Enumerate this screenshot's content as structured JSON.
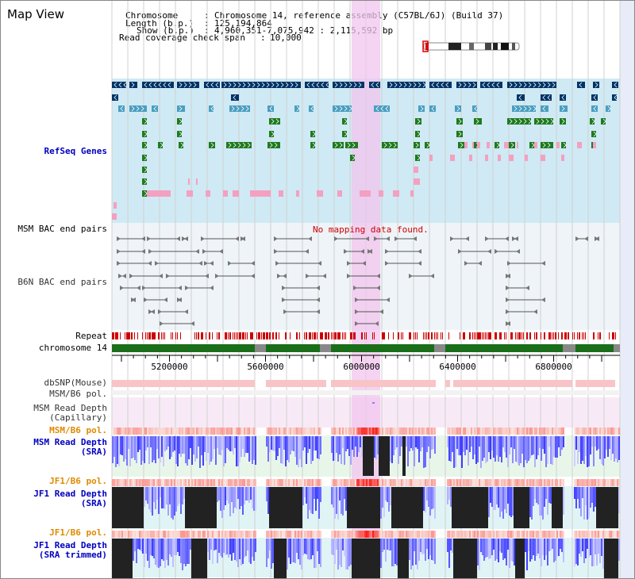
{
  "view_title": "Map View",
  "info": {
    "chromosome_label": "Chromosome",
    "chromosome_value": "Chromosome 14, reference assembly (C57BL/6J) (Build 37)",
    "length_label": "Length (b.p.)",
    "length_value": "125,194,864",
    "show_label": "Show (b.p.)",
    "show_value": "4,960,351-7,075,942 : 2,115,592 bp",
    "coverage_label": "Read coverage check span",
    "coverage_value": "10,000"
  },
  "tracks": {
    "refseq": "RefSeq Genes",
    "msm_bac": "MSM BAC end pairs",
    "b6n_bac": "B6N BAC end pairs",
    "repeat": "Repeat",
    "chromosome": "chromosome 14",
    "dbsnp": "dbSNP(Mouse)",
    "msm_b6_pol": "MSM/B6 pol.",
    "msm_read_depth_cap_1": "MSM Read Depth",
    "msm_read_depth_cap_2": "(Capillary)",
    "msm_b6_pol_2": "MSM/B6 pol.",
    "msm_read_depth_sra_1": "MSM Read Depth",
    "msm_read_depth_sra_2": "(SRA)",
    "jf1_b6_pol": "JF1/B6 pol.",
    "jf1_read_depth_1": "JF1 Read Depth",
    "jf1_read_depth_2": "(SRA)",
    "jf1_b6_pol_2": "JF1/B6 pol.",
    "jf1_read_depth_trim_1": "JF1 Read Depth",
    "jf1_read_depth_trim_2": "(SRA trimmed)"
  },
  "no_mapping_message": "No mapping data found.",
  "axis": {
    "range_bp": [
      4960351,
      7075942
    ],
    "ticks": [
      "5200000",
      "5600000",
      "6000000",
      "6400000",
      "6800000"
    ]
  },
  "colors": {
    "refseq_bg": "#cfeaf4",
    "gene_navy": "#003366",
    "gene_teal": "#4a9ec0",
    "gene_green": "#1f7a1f",
    "gene_pink": "#f4a0c0",
    "highlight": "#f2c4ee",
    "repeat_red": "#cc0000",
    "chrom_green": "#1a6e1a",
    "depth_blue": "#2a2aff",
    "depth_dark": "#222222",
    "label_blue": "#0000c0",
    "label_orange": "#e08a00"
  }
}
